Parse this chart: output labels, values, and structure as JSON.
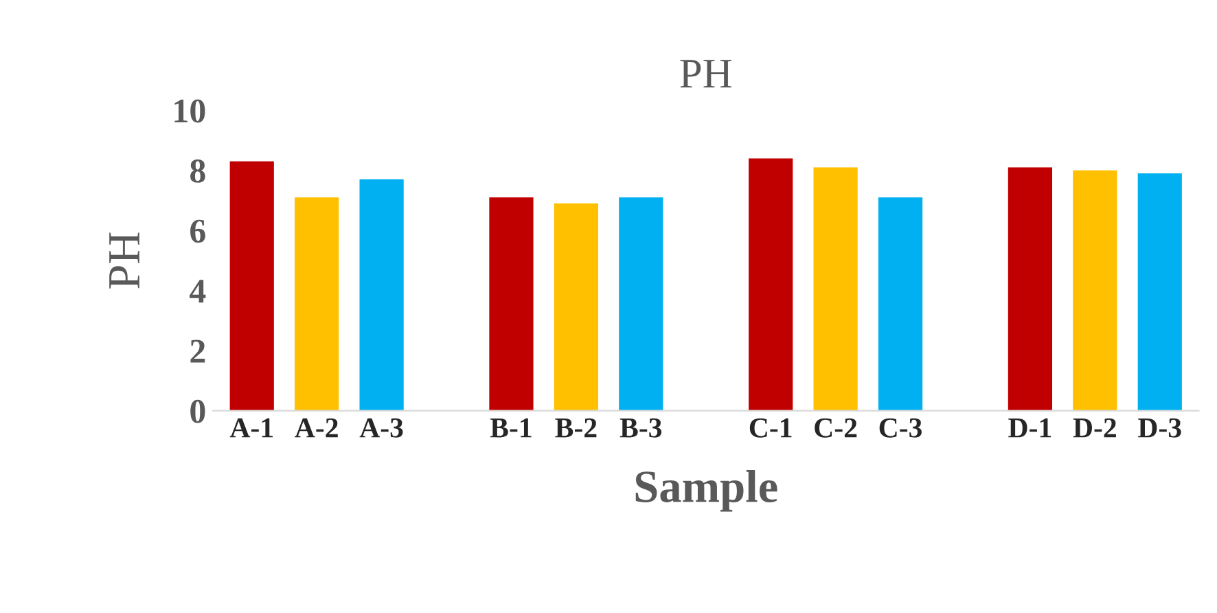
{
  "chart_data": {
    "type": "bar",
    "title": "PH",
    "xlabel": "Sample",
    "ylabel": "PH",
    "categories": [
      "A-1",
      "A-2",
      "A-3",
      null,
      "B-1",
      "B-2",
      "B-3",
      null,
      "C-1",
      "C-2",
      "C-3",
      null,
      "D-1",
      "D-2",
      "D-3"
    ],
    "values": [
      8.3,
      7.1,
      7.7,
      null,
      7.1,
      6.9,
      7.1,
      null,
      8.4,
      8.1,
      7.1,
      null,
      8.1,
      8.0,
      7.9
    ],
    "colors": [
      "#c00000",
      "#ffc000",
      "#00b0f0",
      null,
      "#c00000",
      "#ffc000",
      "#00b0f0",
      null,
      "#c00000",
      "#ffc000",
      "#00b0f0",
      null,
      "#c00000",
      "#ffc000",
      "#00b0f0"
    ],
    "ylim": [
      0,
      10
    ],
    "yticks": [
      0,
      2,
      4,
      6,
      8,
      10
    ],
    "grid": false,
    "legend": false
  }
}
